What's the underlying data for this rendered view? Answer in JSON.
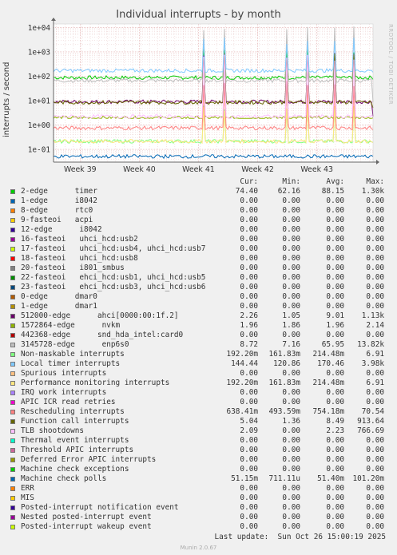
{
  "chart_data": {
    "type": "line",
    "title": "Individual interrupts - by month",
    "ylabel": "interrupts / second",
    "yscale": "log",
    "ylim": [
      0.03,
      14000
    ],
    "yticks": [
      {
        "value": 0.1,
        "label": "1e-01"
      },
      {
        "value": 1,
        "label": "1e+00"
      },
      {
        "value": 10,
        "label": "1e+01"
      },
      {
        "value": 100,
        "label": "1e+02"
      },
      {
        "value": 1000,
        "label": "1e+03"
      },
      {
        "value": 10000,
        "label": "1e+04"
      }
    ],
    "xticks": [
      {
        "week": 39,
        "label": "Week 39"
      },
      {
        "week": 40,
        "label": "Week 40"
      },
      {
        "week": 41,
        "label": "Week 41"
      },
      {
        "week": 42,
        "label": "Week 42"
      },
      {
        "week": 43,
        "label": "Week 43"
      }
    ],
    "xlim": [
      38.55,
      43.95
    ],
    "grid": true,
    "legend_columns": [
      "Cur:",
      "Min:",
      "Avg:",
      "Max:"
    ],
    "series": [
      {
        "name": "2-edge      timer",
        "color": "#00cc00",
        "cur": "74.40",
        "min": "62.16",
        "avg": "88.15",
        "max": "1.30k"
      },
      {
        "name": "1-edge      i8042",
        "color": "#0066b3",
        "cur": "0.00",
        "min": "0.00",
        "avg": "0.00",
        "max": "0.00"
      },
      {
        "name": "8-edge      rtc0",
        "color": "#ff8000",
        "cur": "0.00",
        "min": "0.00",
        "avg": "0.00",
        "max": "0.00"
      },
      {
        "name": "9-fasteoi   acpi",
        "color": "#ffcc00",
        "cur": "0.00",
        "min": "0.00",
        "avg": "0.00",
        "max": "0.00"
      },
      {
        "name": "12-edge      i8042",
        "color": "#330099",
        "cur": "0.00",
        "min": "0.00",
        "avg": "0.00",
        "max": "0.00"
      },
      {
        "name": "16-fasteoi   uhci_hcd:usb2",
        "color": "#990099",
        "cur": "0.00",
        "min": "0.00",
        "avg": "0.00",
        "max": "0.00"
      },
      {
        "name": "17-fasteoi   uhci_hcd:usb4, uhci_hcd:usb7",
        "color": "#ccff00",
        "cur": "0.00",
        "min": "0.00",
        "avg": "0.00",
        "max": "0.00"
      },
      {
        "name": "18-fasteoi   uhci_hcd:usb8",
        "color": "#ff0000",
        "cur": "0.00",
        "min": "0.00",
        "avg": "0.00",
        "max": "0.00"
      },
      {
        "name": "20-fasteoi   i801_smbus",
        "color": "#808080",
        "cur": "0.00",
        "min": "0.00",
        "avg": "0.00",
        "max": "0.00"
      },
      {
        "name": "22-fasteoi   ehci_hcd:usb1, uhci_hcd:usb5",
        "color": "#008f00",
        "cur": "0.00",
        "min": "0.00",
        "avg": "0.00",
        "max": "0.00"
      },
      {
        "name": "23-fasteoi   ehci_hcd:usb3, uhci_hcd:usb6",
        "color": "#00487d",
        "cur": "0.00",
        "min": "0.00",
        "avg": "0.00",
        "max": "0.00"
      },
      {
        "name": "0-edge      dmar0",
        "color": "#b35a00",
        "cur": "0.00",
        "min": "0.00",
        "avg": "0.00",
        "max": "0.00"
      },
      {
        "name": "1-edge      dmar1",
        "color": "#b38f00",
        "cur": "0.00",
        "min": "0.00",
        "avg": "0.00",
        "max": "0.00"
      },
      {
        "name": "512000-edge      ahci[0000:00:1f.2]",
        "color": "#6b006b",
        "cur": "2.26",
        "min": "1.05",
        "avg": "9.01",
        "max": "1.13k"
      },
      {
        "name": "1572864-edge      nvkm",
        "color": "#8fb300",
        "cur": "1.96",
        "min": "1.86",
        "avg": "1.96",
        "max": "2.14"
      },
      {
        "name": "442368-edge      snd_hda_intel:card0",
        "color": "#b30000",
        "cur": "0.00",
        "min": "0.00",
        "avg": "0.00",
        "max": "0.00"
      },
      {
        "name": "3145728-edge      enp6s0",
        "color": "#bebebe",
        "cur": "8.72",
        "min": "7.16",
        "avg": "65.95",
        "max": "13.82k"
      },
      {
        "name": "Non-maskable interrupts",
        "color": "#80ff80",
        "cur": "192.20m",
        "min": "161.83m",
        "avg": "214.48m",
        "max": "6.91"
      },
      {
        "name": "Local timer interrupts",
        "color": "#80c9ff",
        "cur": "144.44",
        "min": "120.86",
        "avg": "170.46",
        "max": "3.98k"
      },
      {
        "name": "Spurious interrupts",
        "color": "#ffc080",
        "cur": "0.00",
        "min": "0.00",
        "avg": "0.00",
        "max": "0.00"
      },
      {
        "name": "Performance monitoring interrupts",
        "color": "#ffe680",
        "cur": "192.20m",
        "min": "161.83m",
        "avg": "214.48m",
        "max": "6.91"
      },
      {
        "name": "IRQ work interrupts",
        "color": "#aa80ff",
        "cur": "0.00",
        "min": "0.00",
        "avg": "0.00",
        "max": "0.00"
      },
      {
        "name": "APIC ICR read retries",
        "color": "#ee00cc",
        "cur": "0.00",
        "min": "0.00",
        "avg": "0.00",
        "max": "0.00"
      },
      {
        "name": "Rescheduling interrupts",
        "color": "#ff8080",
        "cur": "638.41m",
        "min": "493.59m",
        "avg": "754.18m",
        "max": "70.54"
      },
      {
        "name": "Function call interrupts",
        "color": "#666600",
        "cur": "5.04",
        "min": "1.36",
        "avg": "8.49",
        "max": "913.64"
      },
      {
        "name": "TLB shootdowns",
        "color": "#ffbfff",
        "cur": "2.09",
        "min": "0.00",
        "avg": "2.23",
        "max": "766.69"
      },
      {
        "name": "Thermal event interrupts",
        "color": "#00ffcc",
        "cur": "0.00",
        "min": "0.00",
        "avg": "0.00",
        "max": "0.00"
      },
      {
        "name": "Threshold APIC interrupts",
        "color": "#cc6699",
        "cur": "0.00",
        "min": "0.00",
        "avg": "0.00",
        "max": "0.00"
      },
      {
        "name": "Deferred Error APIC interrupts",
        "color": "#999900",
        "cur": "0.00",
        "min": "0.00",
        "avg": "0.00",
        "max": "0.00"
      },
      {
        "name": "Machine check exceptions",
        "color": "#00cc00",
        "cur": "0.00",
        "min": "0.00",
        "avg": "0.00",
        "max": "0.00"
      },
      {
        "name": "Machine check polls",
        "color": "#0066b3",
        "cur": "51.15m",
        "min": "711.11u",
        "avg": "51.40m",
        "max": "101.20m"
      },
      {
        "name": "ERR",
        "color": "#ff8000",
        "cur": "0.00",
        "min": "0.00",
        "avg": "0.00",
        "max": "0.00"
      },
      {
        "name": "MIS",
        "color": "#ffcc00",
        "cur": "0.00",
        "min": "0.00",
        "avg": "0.00",
        "max": "0.00"
      },
      {
        "name": "Posted-interrupt notification event",
        "color": "#330099",
        "cur": "0.00",
        "min": "0.00",
        "avg": "0.00",
        "max": "0.00"
      },
      {
        "name": "Nested posted-interrupt event",
        "color": "#990099",
        "cur": "0.00",
        "min": "0.00",
        "avg": "0.00",
        "max": "0.00"
      },
      {
        "name": "Posted-interrupt wakeup event",
        "color": "#ccff00",
        "cur": "0.00",
        "min": "0.00",
        "avg": "0.00",
        "max": "0.00"
      }
    ]
  },
  "side_label": "RRDTOOL / TOBI OETIKER",
  "last_update": "Last update:  Sun Oct 26 15:00:19 2025",
  "footer": "Munin 2.0.67"
}
